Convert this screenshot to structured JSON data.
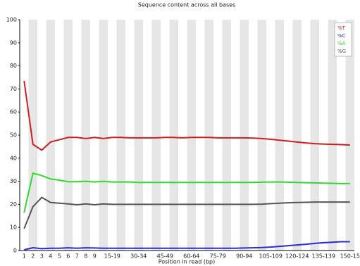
{
  "chart_data": {
    "type": "line",
    "title": "Sequence content across all bases",
    "x_label": "Position in read (bp)",
    "categories": [
      "1",
      "2",
      "3",
      "4",
      "5",
      "6",
      "7",
      "8",
      "9",
      null,
      "15-19",
      null,
      null,
      "30-34",
      null,
      null,
      "45-49",
      null,
      null,
      "60-64",
      null,
      null,
      "75-79",
      null,
      null,
      "90-94",
      null,
      null,
      "105-109",
      null,
      null,
      "120-124",
      null,
      null,
      "135-139",
      null,
      null,
      "150-15"
    ],
    "series": [
      {
        "name": "%T",
        "color": "#cc2020",
        "values": [
          73.5,
          46,
          43.5,
          47,
          48,
          49,
          49,
          48.5,
          49,
          48.5,
          49,
          49,
          48.8,
          48.8,
          48.8,
          48.8,
          49,
          49,
          48.8,
          49,
          49,
          49,
          48.8,
          48.8,
          48.8,
          48.8,
          48.7,
          48.5,
          48.2,
          47.8,
          47.4,
          47,
          46.6,
          46.3,
          46.1,
          46,
          45.9,
          45.7
        ]
      },
      {
        "name": "%C",
        "color": "#2a2ad8",
        "values": [
          0.3,
          1.2,
          0.8,
          1,
          1,
          1.2,
          1,
          1.2,
          1.1,
          1,
          1,
          1,
          1,
          1,
          1,
          1,
          1,
          1,
          1,
          1,
          1,
          1,
          1,
          1,
          1,
          1.1,
          1.2,
          1.3,
          1.5,
          1.8,
          2.1,
          2.4,
          2.7,
          3.1,
          3.4,
          3.6,
          3.8,
          3.8
        ]
      },
      {
        "name": "%A",
        "color": "#30d830",
        "values": [
          16.5,
          33.5,
          32.5,
          31,
          30.5,
          29.8,
          29.8,
          30,
          29.7,
          30,
          29.7,
          29.7,
          29.7,
          29.5,
          29.5,
          29.5,
          29.5,
          29.5,
          29.5,
          29.5,
          29.5,
          29.5,
          29.5,
          29.5,
          29.5,
          29.5,
          29.5,
          29.6,
          29.7,
          29.7,
          29.6,
          29.5,
          29.4,
          29.3,
          29.2,
          29.1,
          29,
          29
        ]
      },
      {
        "name": "%G",
        "color": "#555555",
        "values": [
          9.5,
          19,
          23,
          20.8,
          20.5,
          20.2,
          19.8,
          20.2,
          19.8,
          20.2,
          20,
          20,
          20,
          20,
          20,
          20,
          20,
          20,
          20,
          20,
          20,
          20,
          20,
          20,
          20,
          20,
          20,
          20.1,
          20.3,
          20.5,
          20.7,
          20.8,
          20.9,
          21,
          21,
          21,
          21,
          21
        ]
      }
    ],
    "ylim": [
      0,
      100
    ],
    "yticks": [
      0,
      10,
      20,
      30,
      40,
      50,
      60,
      70,
      80,
      90,
      100
    ],
    "legend": "top-right"
  }
}
